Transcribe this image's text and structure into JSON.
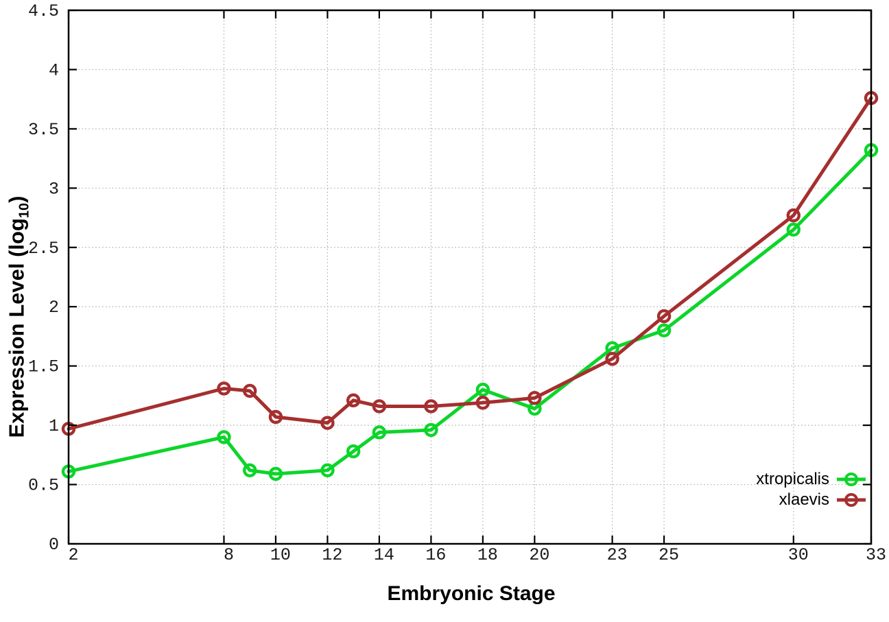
{
  "chart_data": {
    "type": "line",
    "title": "",
    "xlabel": "Embryonic Stage",
    "ylabel": "Expression Level (log10)",
    "ylabel_parts": {
      "main": "Expression Level (log",
      "sub": "10",
      "close": ")"
    },
    "x": [
      2,
      8,
      9,
      10,
      12,
      13,
      14,
      16,
      18,
      20,
      23,
      25,
      30,
      33
    ],
    "series": [
      {
        "name": "xtropicalis",
        "color": "#0cd52a",
        "values": [
          0.61,
          0.9,
          0.62,
          0.59,
          0.62,
          0.78,
          0.94,
          0.96,
          1.3,
          1.14,
          1.65,
          1.8,
          2.65,
          3.32
        ]
      },
      {
        "name": "xlaevis",
        "color": "#a52f2f",
        "values": [
          0.97,
          1.31,
          1.29,
          1.07,
          1.02,
          1.21,
          1.16,
          1.16,
          1.19,
          1.23,
          1.56,
          1.92,
          2.77,
          3.76
        ]
      }
    ],
    "xlim": [
      2,
      33
    ],
    "ylim": [
      0,
      4.5
    ],
    "x_ticks": [
      2,
      8,
      10,
      12,
      14,
      16,
      18,
      20,
      23,
      25,
      30,
      33
    ],
    "y_ticks": [
      0,
      0.5,
      1,
      1.5,
      2,
      2.5,
      3,
      3.5,
      4,
      4.5
    ],
    "y_tick_labels": [
      "0",
      "0.5",
      "1",
      "1.5",
      "2",
      "2.5",
      "3",
      "3.5",
      "4",
      "4.5"
    ],
    "grid": true,
    "grid_style": "dotted",
    "legend_position": "inside-bottom-right",
    "marker": "open-circle",
    "background": "#ffffff",
    "axis_color": "#000000"
  }
}
